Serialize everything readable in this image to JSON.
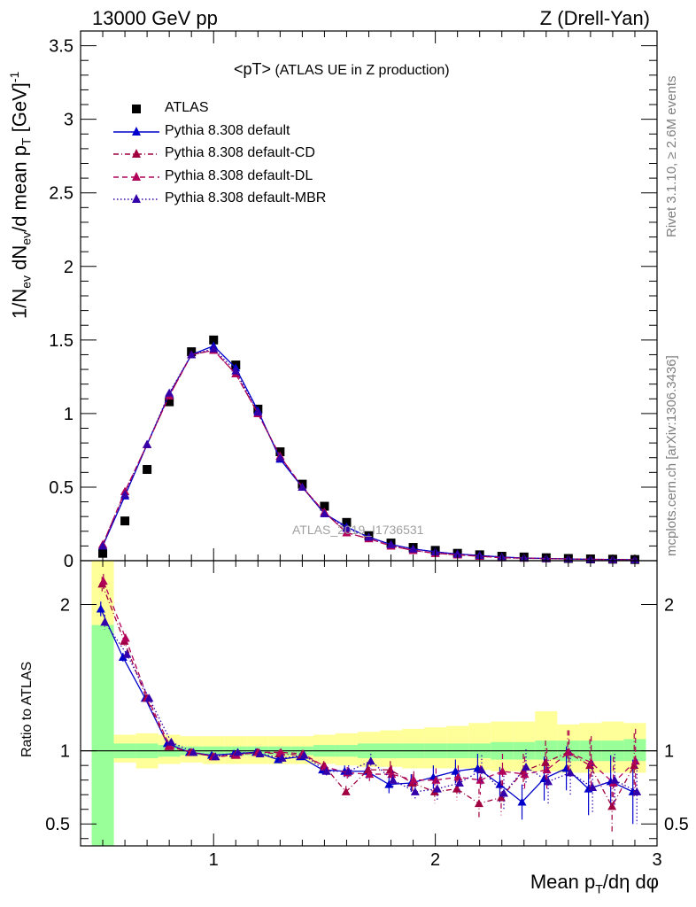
{
  "header": {
    "left": "13000 GeV pp",
    "right": "Z (Drell-Yan)"
  },
  "side_text": {
    "rivet": "Rivet 3.1.10, ≥ 2.6M events",
    "mcplots": "mcplots.cern.ch [arXiv:1306.3436]"
  },
  "title": {
    "main": "<pT>",
    "sub": " (ATLAS UE in Z production)"
  },
  "watermark": "ATLAS_2019_I1736531",
  "labels": {
    "y_main_parts": [
      "1/N",
      "ev",
      " dN",
      "ev",
      "/d mean p",
      "T",
      " [GeV]",
      "-1"
    ],
    "y_ratio": "Ratio to ATLAS",
    "x_parts": [
      "Mean p",
      "T",
      "/dη dφ"
    ]
  },
  "colors": {
    "data": "#000000",
    "default": "#0000cc",
    "cd": "#a0003f",
    "dl": "#b0005a",
    "mbr": "#3300aa",
    "band_inner": "#99ff99",
    "band_outer": "#ffff99"
  },
  "chart_data": [
    {
      "type": "scatter",
      "panel": "main",
      "xlim": [
        0.4,
        3.0
      ],
      "ylim": [
        0,
        3.6
      ],
      "x_ticks": [
        "1",
        "2",
        "3"
      ],
      "y_ticks": [
        "0",
        "0.5",
        "1",
        "1.5",
        "2",
        "2.5",
        "3",
        "3.5"
      ],
      "x": [
        0.5,
        0.6,
        0.7,
        0.8,
        0.9,
        1.0,
        1.1,
        1.2,
        1.3,
        1.4,
        1.5,
        1.6,
        1.7,
        1.8,
        1.9,
        2.0,
        2.1,
        2.2,
        2.3,
        2.4,
        2.5,
        2.6,
        2.7,
        2.8,
        2.9
      ],
      "series": [
        {
          "name": "ATLAS",
          "marker": "square",
          "color": "#000000",
          "values": [
            0.05,
            0.27,
            0.62,
            1.08,
            1.42,
            1.5,
            1.33,
            1.03,
            0.74,
            0.52,
            0.37,
            0.26,
            0.17,
            0.12,
            0.09,
            0.07,
            0.05,
            0.04,
            0.03,
            0.025,
            0.02,
            0.015,
            0.012,
            0.01,
            0.008
          ]
        },
        {
          "name": "Pythia 8.308 default",
          "marker": "triangle",
          "line": "solid",
          "color": "#0000cc",
          "values": [
            0.1,
            0.44,
            0.79,
            1.13,
            1.4,
            1.46,
            1.31,
            1.02,
            0.69,
            0.5,
            0.32,
            0.23,
            0.16,
            0.11,
            0.08,
            0.06,
            0.045,
            0.035,
            0.025,
            0.018,
            0.015,
            0.012,
            0.009,
            0.008,
            0.006
          ]
        },
        {
          "name": "Pythia 8.308 default-CD",
          "marker": "triangle",
          "line": "dashdot",
          "color": "#a0003f",
          "values": [
            0.11,
            0.47,
            0.79,
            1.12,
            1.4,
            1.43,
            1.27,
            1.0,
            0.71,
            0.5,
            0.33,
            0.19,
            0.15,
            0.1,
            0.07,
            0.05,
            0.04,
            0.03,
            0.02,
            0.017,
            0.014,
            0.012,
            0.009,
            0.008,
            0.006
          ]
        },
        {
          "name": "Pythia 8.308 default-DL",
          "marker": "triangle",
          "line": "dashed",
          "color": "#b0005a",
          "values": [
            0.11,
            0.47,
            0.79,
            1.12,
            1.4,
            1.43,
            1.27,
            1.0,
            0.71,
            0.5,
            0.33,
            0.19,
            0.15,
            0.1,
            0.07,
            0.05,
            0.04,
            0.03,
            0.02,
            0.017,
            0.014,
            0.012,
            0.009,
            0.008,
            0.006
          ]
        },
        {
          "name": "Pythia 8.308 default-MBR",
          "marker": "triangle",
          "line": "dotted",
          "color": "#3300aa",
          "values": [
            0.1,
            0.45,
            0.79,
            1.14,
            1.4,
            1.44,
            1.29,
            1.01,
            0.7,
            0.5,
            0.32,
            0.22,
            0.16,
            0.11,
            0.08,
            0.06,
            0.045,
            0.035,
            0.025,
            0.018,
            0.015,
            0.012,
            0.009,
            0.008,
            0.006
          ]
        }
      ]
    },
    {
      "type": "line",
      "panel": "ratio",
      "xlim": [
        0.4,
        3.0
      ],
      "ylim": [
        0.35,
        2.3
      ],
      "x_ticks": [
        "1",
        "2",
        "3"
      ],
      "y_ticks": [
        "0.5",
        "1",
        "2"
      ],
      "reference": 1,
      "x": [
        0.5,
        0.6,
        0.7,
        0.8,
        0.9,
        1.0,
        1.1,
        1.2,
        1.3,
        1.4,
        1.5,
        1.6,
        1.7,
        1.8,
        1.9,
        2.0,
        2.1,
        2.2,
        2.3,
        2.4,
        2.5,
        2.6,
        2.7,
        2.8,
        2.9
      ],
      "band_inner": {
        "lo": [
          0.35,
          0.95,
          0.95,
          0.96,
          0.97,
          0.97,
          0.97,
          0.97,
          0.97,
          0.97,
          0.96,
          0.96,
          0.95,
          0.95,
          0.95,
          0.95,
          0.95,
          0.95,
          0.94,
          0.94,
          0.94,
          0.93,
          0.93,
          0.93,
          0.93
        ],
        "hi": [
          1.86,
          1.05,
          1.05,
          1.04,
          1.03,
          1.03,
          1.03,
          1.03,
          1.03,
          1.03,
          1.04,
          1.04,
          1.05,
          1.05,
          1.05,
          1.05,
          1.05,
          1.05,
          1.06,
          1.06,
          1.07,
          1.07,
          1.07,
          1.07,
          1.08
        ]
      },
      "band_outer": {
        "lo": [
          0.35,
          0.92,
          0.88,
          0.91,
          0.92,
          0.91,
          0.91,
          0.91,
          0.91,
          0.91,
          0.91,
          0.9,
          0.89,
          0.89,
          0.88,
          0.88,
          0.88,
          0.87,
          0.86,
          0.86,
          0.86,
          0.85,
          0.85,
          0.85,
          0.85
        ],
        "hi": [
          2.3,
          1.11,
          1.12,
          1.11,
          1.1,
          1.1,
          1.1,
          1.1,
          1.1,
          1.1,
          1.11,
          1.12,
          1.13,
          1.14,
          1.15,
          1.16,
          1.17,
          1.19,
          1.2,
          1.2,
          1.27,
          1.18,
          1.19,
          1.2,
          1.19
        ]
      },
      "series": [
        {
          "name": "Pythia 8.308 default",
          "color": "#0000cc",
          "line": "solid",
          "values": [
            1.97,
            1.64,
            1.36,
            1.05,
            0.99,
            0.97,
            0.98,
            0.99,
            0.94,
            0.96,
            0.87,
            0.86,
            0.86,
            0.77,
            0.78,
            0.82,
            0.86,
            0.88,
            0.77,
            0.65,
            0.81,
            0.88,
            0.74,
            0.79,
            0.72
          ],
          "err": [
            0.05,
            0.03,
            0.02,
            0.01,
            0.01,
            0.01,
            0.01,
            0.01,
            0.01,
            0.02,
            0.03,
            0.04,
            0.05,
            0.06,
            0.06,
            0.08,
            0.08,
            0.1,
            0.12,
            0.12,
            0.15,
            0.15,
            0.18,
            0.18,
            0.22
          ]
        },
        {
          "name": "Pythia 8.308 default-CD",
          "color": "#a0003f",
          "line": "dashdot",
          "values": [
            2.14,
            1.75,
            1.36,
            1.03,
            0.99,
            0.96,
            0.97,
            0.99,
            0.98,
            0.97,
            0.9,
            0.72,
            0.87,
            0.87,
            0.78,
            0.72,
            0.74,
            0.64,
            0.68,
            0.86,
            0.92,
            0.99,
            0.9,
            0.62,
            0.9
          ],
          "err": [
            0.05,
            0.03,
            0.02,
            0.01,
            0.01,
            0.01,
            0.01,
            0.01,
            0.01,
            0.02,
            0.03,
            0.04,
            0.05,
            0.06,
            0.06,
            0.08,
            0.08,
            0.1,
            0.12,
            0.12,
            0.15,
            0.15,
            0.18,
            0.18,
            0.22
          ]
        },
        {
          "name": "Pythia 8.308 default-DL",
          "color": "#b0005a",
          "line": "dashed",
          "values": [
            2.16,
            1.77,
            1.36,
            1.03,
            0.99,
            0.96,
            0.97,
            0.99,
            0.99,
            0.98,
            0.89,
            0.85,
            0.84,
            0.84,
            0.8,
            0.8,
            0.82,
            0.8,
            0.86,
            0.84,
            0.87,
            0.99,
            0.92,
            0.78,
            0.93
          ],
          "err": [
            0.05,
            0.03,
            0.02,
            0.01,
            0.01,
            0.01,
            0.01,
            0.01,
            0.01,
            0.02,
            0.03,
            0.04,
            0.05,
            0.06,
            0.06,
            0.08,
            0.08,
            0.1,
            0.12,
            0.12,
            0.15,
            0.15,
            0.18,
            0.18,
            0.22
          ]
        },
        {
          "name": "Pythia 8.308 default-MBR",
          "color": "#3300aa",
          "line": "dotted",
          "values": [
            1.88,
            1.66,
            1.36,
            1.06,
            0.99,
            0.96,
            0.99,
            0.98,
            0.95,
            0.97,
            0.86,
            0.86,
            0.93,
            0.8,
            0.72,
            0.74,
            0.78,
            0.87,
            0.71,
            0.89,
            0.79,
            0.85,
            0.75,
            0.8,
            0.72
          ],
          "err": [
            0.05,
            0.03,
            0.02,
            0.01,
            0.01,
            0.01,
            0.01,
            0.01,
            0.01,
            0.02,
            0.03,
            0.04,
            0.05,
            0.06,
            0.06,
            0.08,
            0.08,
            0.1,
            0.12,
            0.12,
            0.15,
            0.15,
            0.18,
            0.18,
            0.22
          ]
        }
      ]
    }
  ]
}
